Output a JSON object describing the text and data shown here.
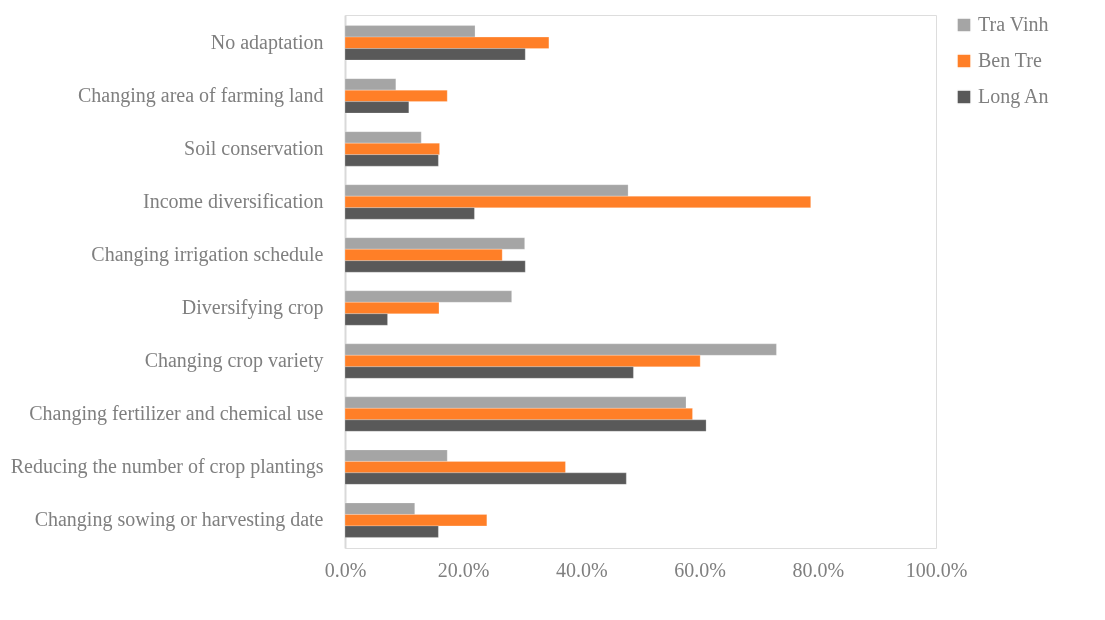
{
  "chart_data": {
    "type": "bar",
    "orientation": "horizontal",
    "categories": [
      "No adaptation",
      "Changing area of farming land",
      "Soil conservation",
      "Income diversification",
      "Changing irrigation schedule",
      "Diversifying crop",
      "Changing crop variety",
      "Changing fertilizer and chemical use",
      "Reducing the number of crop plantings",
      "Changing sowing or harvesting date"
    ],
    "series": [
      {
        "name": "Tra Vinh",
        "color": "#a5a5a5",
        "values": [
          22.0,
          8.6,
          12.9,
          47.9,
          30.4,
          28.2,
          73.0,
          57.7,
          17.3,
          11.8
        ]
      },
      {
        "name": "Ben Tre",
        "color": "#ff7f27",
        "values": [
          34.5,
          17.3,
          16.0,
          78.8,
          26.6,
          15.9,
          60.1,
          58.8,
          37.3,
          24.0
        ]
      },
      {
        "name": "Long An",
        "color": "#595959",
        "values": [
          30.5,
          10.8,
          15.8,
          21.9,
          30.5,
          7.2,
          48.8,
          61.1,
          47.6,
          15.8
        ]
      }
    ],
    "xlim": [
      0,
      100
    ],
    "xticks": [
      {
        "value": 0,
        "label": "0.0%"
      },
      {
        "value": 20,
        "label": "20.0%"
      },
      {
        "value": 40,
        "label": "40.0%"
      },
      {
        "value": 60,
        "label": "60.0%"
      },
      {
        "value": 80,
        "label": "80.0%"
      },
      {
        "value": 100,
        "label": "100.0%"
      }
    ],
    "grid": false,
    "legend": "right"
  }
}
